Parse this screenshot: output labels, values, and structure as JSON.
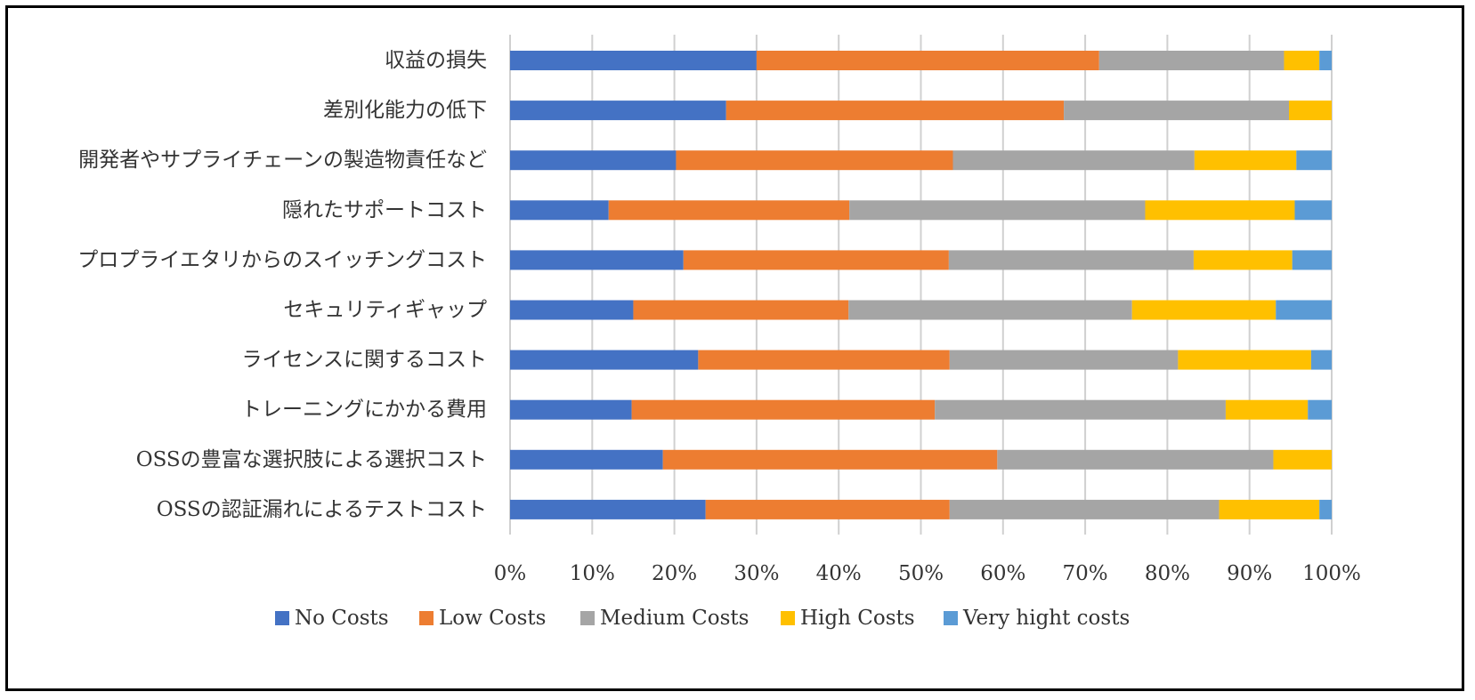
{
  "chart_data": {
    "type": "bar",
    "orientation": "horizontal",
    "stacked": "percent",
    "title": "",
    "xlabel": "",
    "ylabel": "",
    "xlim": [
      0,
      100
    ],
    "x_ticks": [
      "0%",
      "10%",
      "20%",
      "30%",
      "40%",
      "50%",
      "60%",
      "70%",
      "80%",
      "90%",
      "100%"
    ],
    "grid": "vertical",
    "legend_position": "bottom",
    "categories": [
      "収益の損失",
      "差別化能力の低下",
      "開発者やサプライチェーンの製造物責任など",
      "隠れたサポートコスト",
      "プロプライエタリからのスイッチングコスト",
      "セキュリティギャップ",
      "ライセンスに関するコスト",
      "トレーニングにかかる費用",
      "OSSの豊富な選択肢による選択コスト",
      "OSSの認証漏れによるテストコスト"
    ],
    "series": [
      {
        "name": "No Costs",
        "color": "#4472C4",
        "values": [
          30.0,
          26.3,
          20.2,
          12.0,
          21.1,
          15.0,
          22.9,
          14.8,
          18.6,
          23.8
        ]
      },
      {
        "name": "Low Costs",
        "color": "#ED7D31",
        "values": [
          41.7,
          41.1,
          33.7,
          29.3,
          32.3,
          26.2,
          30.6,
          36.9,
          40.7,
          29.7
        ]
      },
      {
        "name": "Medium Costs",
        "color": "#A5A5A5",
        "values": [
          22.5,
          27.4,
          29.4,
          36.0,
          29.8,
          34.5,
          27.8,
          35.4,
          33.6,
          32.8
        ]
      },
      {
        "name": "High Costs",
        "color": "#FFC000",
        "values": [
          4.3,
          5.2,
          12.4,
          18.2,
          12.0,
          17.5,
          16.2,
          10.0,
          7.1,
          12.2
        ]
      },
      {
        "name": "Very hight costs",
        "color": "#5B9BD5",
        "values": [
          1.5,
          0.0,
          4.3,
          4.5,
          4.8,
          6.8,
          2.5,
          2.9,
          0.0,
          1.5
        ]
      }
    ]
  }
}
